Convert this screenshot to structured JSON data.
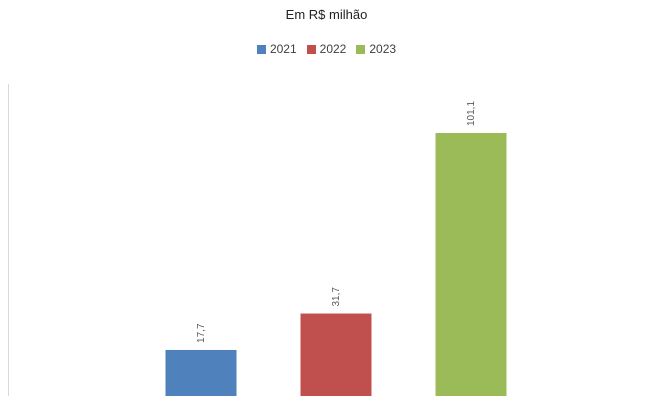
{
  "chart_data": {
    "type": "bar",
    "title": "",
    "subtitle": "Em R$ milhão",
    "categories": [
      "2021",
      "2022",
      "2023"
    ],
    "values": [
      17.7,
      31.7,
      101.1
    ],
    "value_labels": [
      "17,7",
      "31,7",
      "101,1"
    ],
    "colors": [
      "#4f81bd",
      "#c0504d",
      "#9bbb59"
    ],
    "legend": {
      "position": "top",
      "entries": [
        "2021",
        "2022",
        "2023"
      ]
    },
    "xlabel": "",
    "ylabel": "",
    "ylim": [
      0,
      101.1
    ],
    "grid": false
  }
}
